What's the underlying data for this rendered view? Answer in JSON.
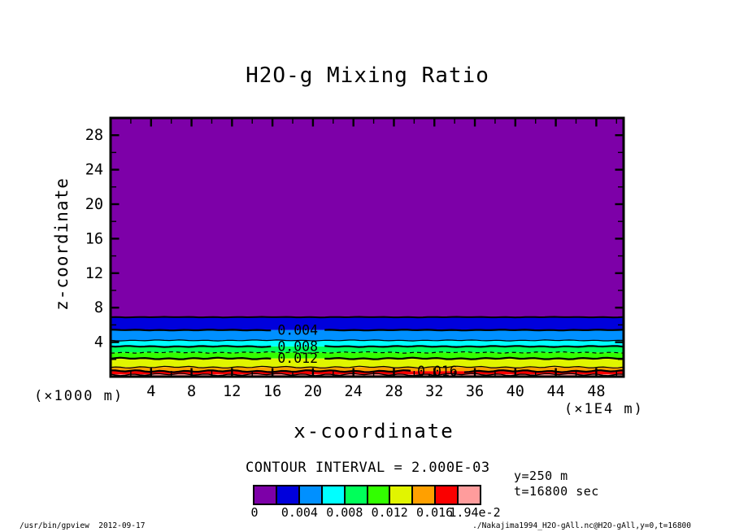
{
  "chart_data": {
    "type": "heatmap",
    "subtype": "filled-contour",
    "title": "H2O-g Mixing Ratio",
    "xlabel": "x-coordinate",
    "ylabel": "z-coordinate",
    "x_unit_note": "(×1E4 m)",
    "y_unit_note": "(×1000 m)",
    "x_ticks": [
      4,
      8,
      12,
      16,
      20,
      24,
      28,
      32,
      36,
      40,
      44,
      48
    ],
    "y_ticks": [
      4,
      8,
      12,
      16,
      20,
      24,
      28
    ],
    "xlim": [
      0,
      50.7
    ],
    "ylim": [
      0,
      30
    ],
    "minor_tick_step": 2,
    "grid": false,
    "contour_interval": 0.002,
    "contour_interval_label": "CONTOUR INTERVAL = 2.000E-03",
    "field_note": "horizontally uniform layered field; maximum 1.94e-2 at the surface decreasing to ~0 above z≈7 (×1000 m)",
    "bands": [
      {
        "min": 0.0,
        "max": 0.002,
        "color": "#7D00A8",
        "z_top": 30.0,
        "z_bottom": 6.9
      },
      {
        "min": 0.002,
        "max": 0.004,
        "color": "#0000DC",
        "z_top": 6.9,
        "z_bottom": 5.4
      },
      {
        "min": 0.004,
        "max": 0.006,
        "color": "#0090FF",
        "z_top": 5.4,
        "z_bottom": 4.2
      },
      {
        "min": 0.006,
        "max": 0.008,
        "color": "#00FFFF",
        "z_top": 4.2,
        "z_bottom": 3.5
      },
      {
        "min": 0.008,
        "max": 0.01,
        "color": "#00FF5A",
        "z_top": 3.5,
        "z_bottom": 2.8
      },
      {
        "min": 0.01,
        "max": 0.012,
        "color": "#32FF00",
        "z_top": 2.8,
        "z_bottom": 2.1
      },
      {
        "min": 0.012,
        "max": 0.014,
        "color": "#E1F500",
        "z_top": 2.1,
        "z_bottom": 1.1
      },
      {
        "min": 0.014,
        "max": 0.016,
        "color": "#FFA000",
        "z_top": 1.1,
        "z_bottom": 0.63
      },
      {
        "min": 0.016,
        "max": 0.018,
        "color": "#FA0000",
        "z_top": 0.63,
        "z_bottom": 0.25
      },
      {
        "min": 0.018,
        "max": 0.0194,
        "color": "#FF9C9C",
        "z_top": 0.25,
        "z_bottom": 0.0
      }
    ],
    "contour_labels": [
      {
        "value": "0.004",
        "x": 18.5,
        "z": 5.4
      },
      {
        "value": "0.008",
        "x": 18.5,
        "z": 3.5
      },
      {
        "value": "0.012",
        "x": 18.5,
        "z": 2.1
      },
      {
        "value": "0.016",
        "x": 32.3,
        "z": 0.63
      }
    ],
    "colorbar": {
      "colors": [
        "#7D00A8",
        "#0000DC",
        "#0090FF",
        "#00FFFF",
        "#00FF5A",
        "#32FF00",
        "#E1F500",
        "#FFA000",
        "#FA0000",
        "#FF9C9C"
      ],
      "tick_labels": [
        "0",
        "0.004",
        "0.008",
        "0.012",
        "0.016",
        "1.94e-2"
      ],
      "range": [
        0,
        0.0194
      ]
    }
  },
  "annotations": {
    "y_slice": "y=250 m",
    "time": "t=16800 sec"
  },
  "footer": {
    "left": "/usr/bin/gpview  2012-09-17",
    "right": "./Nakajima1994_H2O-gAll.nc@H2O-gAll,y=0,t=16800"
  }
}
